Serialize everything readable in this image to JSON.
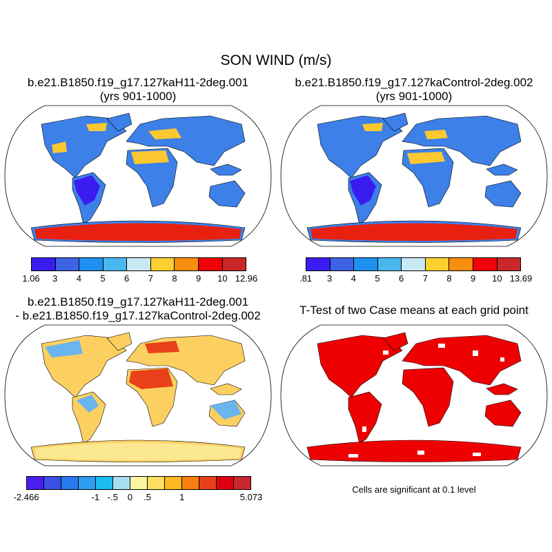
{
  "figure": {
    "title": "SON WIND (m/s)"
  },
  "panels": [
    {
      "id": "case1",
      "title_line1": "b.e21.B1850.f19_g17.127kaH11-2deg.001",
      "title_line2": "(yrs 901-1000)",
      "colorbar": {
        "colors": [
          "#3a1cf0",
          "#3c63e6",
          "#1e90f0",
          "#4ab8f0",
          "#c8e8f4",
          "#fcd030",
          "#f88e10",
          "#f00008",
          "#c82828"
        ],
        "labels": [
          "1.06",
          "3",
          "4",
          "5",
          "6",
          "7",
          "8",
          "9",
          "10",
          "12.96"
        ]
      }
    },
    {
      "id": "case2",
      "title_line1": "b.e21.B1850.f19_g17.127kaControl-2deg.002",
      "title_line2": "(yrs 901-1000)",
      "colorbar": {
        "colors": [
          "#3a1cf0",
          "#3c63e6",
          "#1e90f0",
          "#4ab8f0",
          "#c8e8f4",
          "#fcd030",
          "#f88e10",
          "#f00008",
          "#c82828"
        ],
        "labels": [
          ".81",
          "3",
          "4",
          "5",
          "6",
          "7",
          "8",
          "9",
          "10",
          "13.69"
        ]
      }
    },
    {
      "id": "difference",
      "title_line1": "b.e21.B1850.f19_g17.127kaH11-2deg.001",
      "title_line2": "- b.e21.B1850.f19_g17.127kaControl-2deg.002",
      "colorbar": {
        "colors": [
          "#4a1ef0",
          "#3c50e6",
          "#2878f0",
          "#2c9ef0",
          "#1cbcf0",
          "#a8dcf0",
          "#fcf4a0",
          "#fce060",
          "#fcb820",
          "#f88010",
          "#e84018",
          "#e00010",
          "#c82830"
        ],
        "labels": [
          "-2.466",
          "-1",
          "-.5",
          "0",
          ".5",
          "1",
          "5.073"
        ]
      }
    },
    {
      "id": "ttest",
      "title_line1": "T-Test of two Case means at each grid point",
      "note": "Cells are significant at 0.1 level"
    }
  ]
}
